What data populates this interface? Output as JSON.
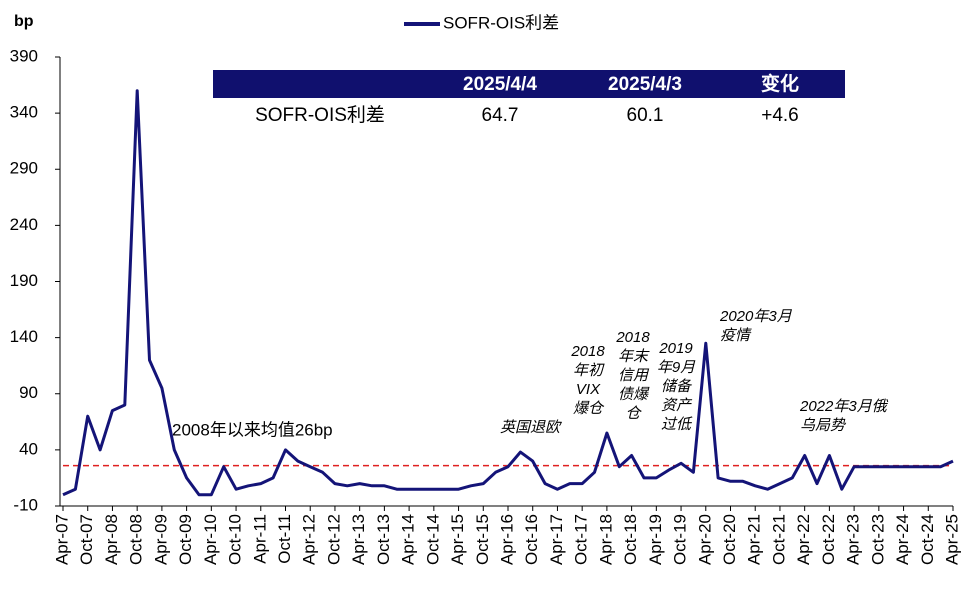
{
  "chart_data": {
    "type": "line",
    "y_label": "bp",
    "categories": [
      "Apr-07",
      null,
      "Oct-07",
      null,
      "Apr-08",
      null,
      "Oct-08",
      null,
      "Apr-09",
      null,
      "Oct-09",
      null,
      "Apr-10",
      null,
      "Oct-10",
      null,
      "Apr-11",
      null,
      "Oct-11",
      null,
      "Apr-12",
      null,
      "Oct-12",
      null,
      "Apr-13",
      null,
      "Oct-13",
      null,
      "Apr-14",
      null,
      "Oct-14",
      null,
      "Apr-15",
      null,
      "Oct-15",
      null,
      "Apr-16",
      null,
      "Oct-16",
      null,
      "Apr-17",
      null,
      "Oct-17",
      null,
      "Apr-18",
      null,
      "Oct-18",
      null,
      "Apr-19",
      null,
      "Oct-19",
      null,
      "Apr-20",
      null,
      "Oct-20",
      null,
      "Apr-21",
      null,
      "Oct-21",
      null,
      "Apr-22",
      null,
      "Oct-22",
      null,
      "Apr-23",
      null,
      "Oct-23",
      null,
      "Apr-24",
      null,
      "Oct-24",
      null,
      "Apr-25"
    ],
    "series": [
      {
        "name": "SOFR-OIS利差",
        "color": "#141478",
        "values": [
          0,
          5,
          70,
          40,
          75,
          80,
          360,
          120,
          95,
          40,
          15,
          0,
          0,
          25,
          5,
          8,
          10,
          15,
          40,
          30,
          25,
          20,
          10,
          8,
          10,
          8,
          8,
          5,
          5,
          5,
          5,
          5,
          5,
          8,
          10,
          20,
          25,
          38,
          30,
          10,
          5,
          10,
          10,
          20,
          55,
          25,
          35,
          15,
          15,
          22,
          28,
          20,
          135,
          15,
          12,
          12,
          8,
          5,
          10,
          15,
          35,
          10,
          35,
          5,
          25,
          25,
          25,
          25,
          25,
          25,
          25,
          25,
          30
        ]
      }
    ],
    "ylim": [
      -10,
      390
    ],
    "yticks": [
      -10,
      40,
      90,
      140,
      190,
      240,
      290,
      340,
      390
    ],
    "mean_line": {
      "value": 26,
      "color": "#e02020",
      "label": "2008年以来均值26bp"
    },
    "annotations": [
      {
        "lines": [
          "英国退欧"
        ]
      },
      {
        "lines": [
          "2018",
          "年初",
          "VIX",
          "爆仓"
        ]
      },
      {
        "lines": [
          "2018",
          "年末",
          "信用",
          "债爆",
          "仓"
        ]
      },
      {
        "lines": [
          "2019",
          "年9月",
          "储备",
          "资产",
          "过低"
        ]
      },
      {
        "lines": [
          "2020年3月",
          "疫情"
        ]
      },
      {
        "lines": [
          "2022年3月俄",
          "乌局势"
        ]
      }
    ],
    "table": {
      "columns": [
        "2025/4/4",
        "2025/4/3",
        "变化"
      ],
      "rows": [
        {
          "label": "SOFR-OIS利差",
          "cells": [
            "64.7",
            "60.1",
            "+4.6"
          ]
        }
      ]
    }
  }
}
